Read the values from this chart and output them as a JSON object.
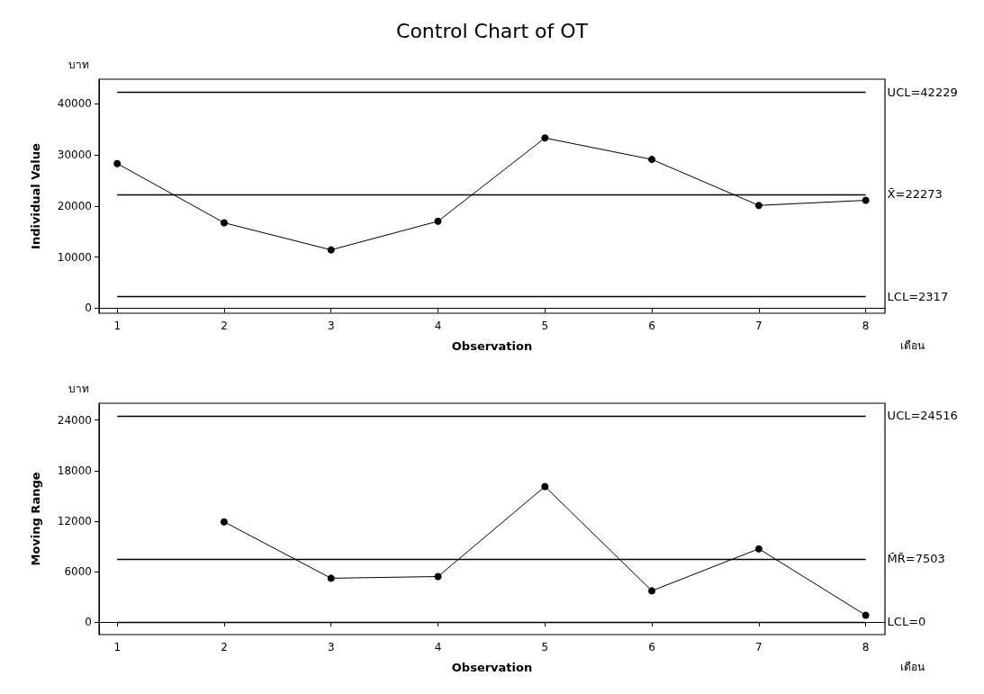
{
  "chart_data": [
    {
      "type": "line",
      "title": "Control Chart of OT",
      "xlabel": "Observation",
      "ylabel": "Individual Value",
      "marker": "circle",
      "line_style": "solid",
      "x": [
        1,
        2,
        3,
        4,
        5,
        6,
        7,
        8
      ],
      "series": [
        {
          "color": "#000000",
          "values": [
            28300,
            16700,
            11400,
            17000,
            33300,
            29100,
            20100,
            21100
          ]
        }
      ],
      "xlim": [
        0.83,
        8.18
      ],
      "xticks": [
        1,
        2,
        3,
        4,
        5,
        6,
        7,
        8
      ],
      "ylim": [
        -1000,
        44800
      ],
      "yticks": [
        0,
        10000,
        20000,
        30000,
        40000
      ],
      "ref_lines": [
        {
          "axis": "y",
          "value": 42229,
          "label": "UCL=42229",
          "color": "#000000"
        },
        {
          "axis": "y",
          "value": 22273,
          "label": "X̄=22273",
          "color": "#000000"
        },
        {
          "axis": "y",
          "value": 2317,
          "label": "LCL=2317",
          "color": "#000000"
        }
      ],
      "annotations": [
        "บาท",
        "เดือน"
      ]
    },
    {
      "type": "line",
      "xlabel": "Observation",
      "ylabel": "Moving Range",
      "marker": "circle",
      "line_style": "solid",
      "series": [
        {
          "color": "#000000",
          "x": [
            2,
            3,
            4,
            5,
            6,
            7,
            8
          ],
          "values": [
            11900,
            5200,
            5400,
            16100,
            3700,
            8700,
            800
          ]
        }
      ],
      "xlim": [
        0.83,
        8.18
      ],
      "xticks": [
        1,
        2,
        3,
        4,
        5,
        6,
        7,
        8
      ],
      "ylim": [
        -1500,
        26000
      ],
      "yticks": [
        0,
        6000,
        12000,
        18000,
        24000
      ],
      "ref_lines": [
        {
          "axis": "y",
          "value": 24516,
          "label": "UCL=24516",
          "color": "#000000"
        },
        {
          "axis": "y",
          "value": 7503,
          "label": "M̄R̄=7503",
          "color": "#000000"
        },
        {
          "axis": "y",
          "value": 0,
          "label": "LCL=0",
          "color": "#000000"
        }
      ],
      "annotations": [
        "บาท",
        "เดือน"
      ]
    }
  ]
}
